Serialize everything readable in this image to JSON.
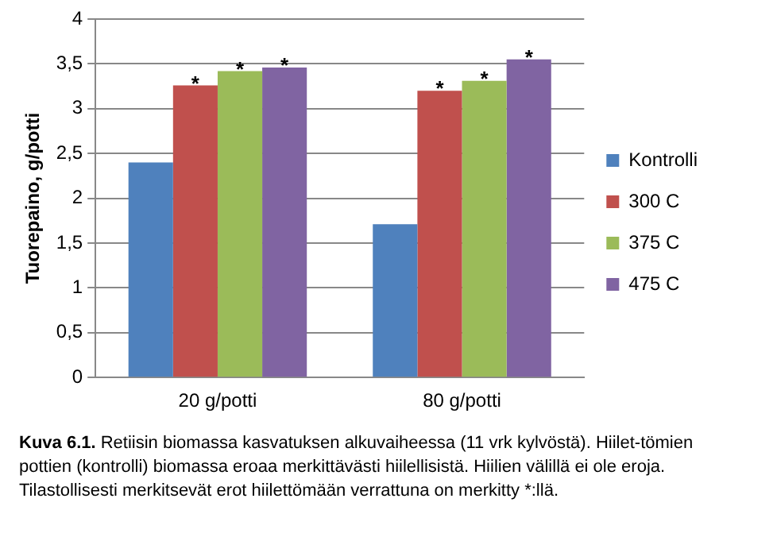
{
  "chart_data": {
    "type": "bar",
    "ylabel": "Tuorepaino, g/potti",
    "categories": [
      "20 g/potti",
      "80 g/potti"
    ],
    "series": [
      {
        "name": "Kontrolli",
        "color": "#4f81bd",
        "values": [
          2.4,
          1.71
        ]
      },
      {
        "name": "300 C",
        "color": "#c0504d",
        "values": [
          3.26,
          3.2
        ],
        "value_labels": [
          "*",
          "*"
        ]
      },
      {
        "name": "375 C",
        "color": "#9bbb59",
        "values": [
          3.42,
          3.31
        ],
        "value_labels": [
          "*",
          "*"
        ]
      },
      {
        "name": "475 C",
        "color": "#8064a2",
        "values": [
          3.46,
          3.55
        ],
        "value_labels": [
          "*",
          "*"
        ]
      }
    ],
    "ylim": [
      0,
      4
    ],
    "yticks": [
      0,
      {
        "value": 0.5,
        "label": "0,5"
      },
      1,
      {
        "value": 1.5,
        "label": "1,5"
      },
      2,
      {
        "value": 2.5,
        "label": "2,5"
      },
      3,
      {
        "value": 3.5,
        "label": "3,5"
      },
      4
    ],
    "grid": "y",
    "legend": "right",
    "annotations": [
      "Kuva 6.1.",
      "Retiisin biomassa kasvatuksen alkuvaiheessa (11 vrk kylvöstä). Hiilet-tömien pottien (kontrolli) biomassa eroaa merkittävästi hiilellisistä. Hiilien välillä ei ole eroja. Tilastollisesti merkitsevät erot hiilettömään verrattuna on merkitty *:llä."
    ]
  }
}
